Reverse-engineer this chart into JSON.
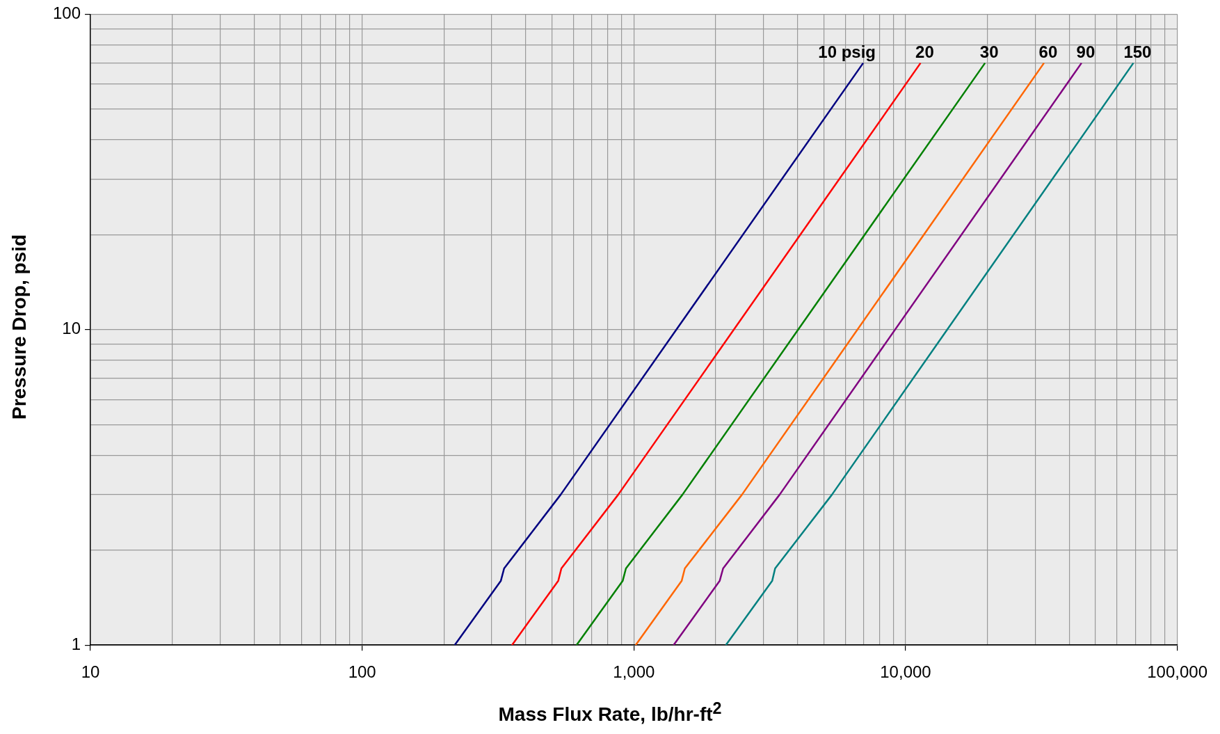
{
  "chart_data": {
    "type": "line",
    "xlabel": "Mass Flux Rate, lb/hr-ft$^{2}$",
    "ylabel": "Pressure Drop, psid",
    "log": "xy",
    "grid": true,
    "legend": false,
    "marker": "none",
    "line_style": "solid",
    "xlim": [
      10,
      100000
    ],
    "ylim": [
      1,
      100
    ],
    "xticks": [
      {
        "value": 10,
        "label": "10"
      },
      {
        "value": 20,
        "label": null
      },
      {
        "value": 30,
        "label": null
      },
      {
        "value": 40,
        "label": null
      },
      {
        "value": 50,
        "label": null
      },
      {
        "value": 60,
        "label": null
      },
      {
        "value": 70,
        "label": null
      },
      {
        "value": 80,
        "label": null
      },
      {
        "value": 90,
        "label": null
      },
      {
        "value": 100,
        "label": "100"
      },
      {
        "value": 200,
        "label": null
      },
      {
        "value": 300,
        "label": null
      },
      {
        "value": 400,
        "label": null
      },
      {
        "value": 500,
        "label": null
      },
      {
        "value": 600,
        "label": null
      },
      {
        "value": 700,
        "label": null
      },
      {
        "value": 800,
        "label": null
      },
      {
        "value": 900,
        "label": null
      },
      {
        "value": 1000,
        "label": "1,000"
      },
      {
        "value": 2000,
        "label": null
      },
      {
        "value": 3000,
        "label": null
      },
      {
        "value": 4000,
        "label": null
      },
      {
        "value": 5000,
        "label": null
      },
      {
        "value": 6000,
        "label": null
      },
      {
        "value": 7000,
        "label": null
      },
      {
        "value": 8000,
        "label": null
      },
      {
        "value": 9000,
        "label": null
      },
      {
        "value": 10000,
        "label": "10,000"
      },
      {
        "value": 20000,
        "label": null
      },
      {
        "value": 30000,
        "label": null
      },
      {
        "value": 40000,
        "label": null
      },
      {
        "value": 50000,
        "label": null
      },
      {
        "value": 60000,
        "label": null
      },
      {
        "value": 70000,
        "label": null
      },
      {
        "value": 80000,
        "label": null
      },
      {
        "value": 90000,
        "label": null
      },
      {
        "value": 100000,
        "label": "100,000"
      }
    ],
    "yticks": [
      1,
      {
        "value": 2,
        "label": null
      },
      {
        "value": 3,
        "label": null
      },
      {
        "value": 4,
        "label": null
      },
      {
        "value": 5,
        "label": null
      },
      {
        "value": 6,
        "label": null
      },
      {
        "value": 7,
        "label": null
      },
      {
        "value": 8,
        "label": null
      },
      {
        "value": 9,
        "label": null
      },
      10,
      {
        "value": 20,
        "label": null
      },
      {
        "value": 30,
        "label": null
      },
      {
        "value": 40,
        "label": null
      },
      {
        "value": 50,
        "label": null
      },
      {
        "value": 60,
        "label": null
      },
      {
        "value": 70,
        "label": null
      },
      {
        "value": 80,
        "label": null
      },
      {
        "value": 90,
        "label": null
      },
      100
    ],
    "series": [
      {
        "name": "10 psig",
        "color": "#000080",
        "x": [
          219,
          324,
          333,
          538,
          6980
        ],
        "values": [
          1,
          1.6,
          1.75,
          3,
          70
        ]
      },
      {
        "name": "20",
        "color": "#ff0000",
        "x": [
          356,
          527,
          541,
          876,
          11350
        ],
        "values": [
          1,
          1.6,
          1.75,
          3,
          70
        ]
      },
      {
        "name": "30",
        "color": "#008000",
        "x": [
          615,
          910,
          935,
          1510,
          19600
        ],
        "values": [
          1,
          1.6,
          1.75,
          3,
          70
        ]
      },
      {
        "name": "60",
        "color": "#ff6600",
        "x": [
          1015,
          1500,
          1540,
          2500,
          32300
        ],
        "values": [
          1,
          1.6,
          1.75,
          3,
          70
        ]
      },
      {
        "name": "90",
        "color": "#800080",
        "x": [
          1400,
          2070,
          2130,
          3440,
          44400
        ],
        "values": [
          1,
          1.6,
          1.75,
          3,
          70
        ]
      },
      {
        "name": "150",
        "color": "#008080",
        "x": [
          2180,
          3230,
          3310,
          5360,
          68900
        ],
        "values": [
          1,
          1.6,
          1.75,
          3,
          70
        ]
      }
    ]
  }
}
